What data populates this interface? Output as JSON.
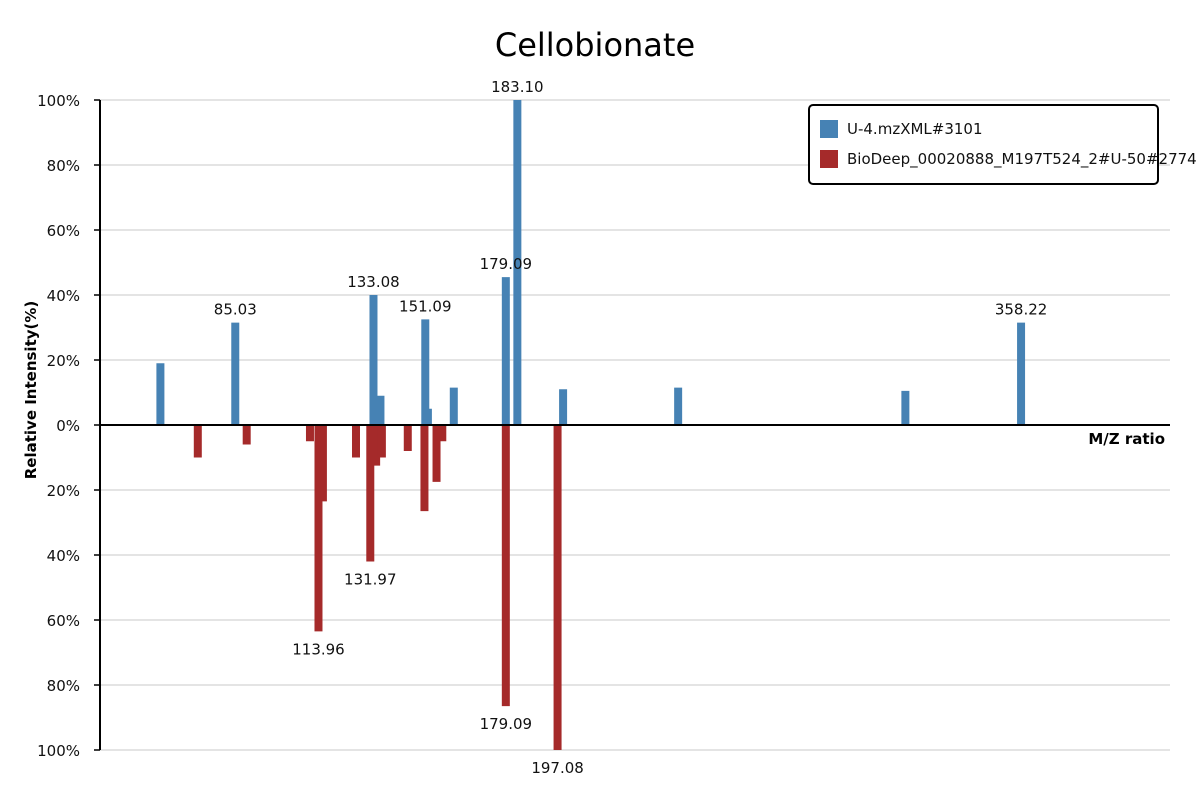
{
  "chart_data": {
    "type": "bar",
    "title": "Cellobionate",
    "ylabel": "Relative Intensity(%)",
    "xlabel": "M/Z ratio",
    "ylim": [
      -100,
      100
    ],
    "y_ticks": [
      "100%",
      "80%",
      "60%",
      "40%",
      "20%",
      "0%",
      "20%",
      "40%",
      "60%",
      "80%",
      "100%"
    ],
    "grid": true,
    "legend_position": "top-right",
    "colors": {
      "sample": "#4682b4",
      "reference": "#a52a2a"
    },
    "series": [
      {
        "name": "U-4.mzXML#3101",
        "direction": "up",
        "points": [
          {
            "mz": 59.0,
            "intensity": 19
          },
          {
            "mz": 85.03,
            "intensity": 31.5,
            "label": "85.03"
          },
          {
            "mz": 133.08,
            "intensity": 40,
            "label": "133.08"
          },
          {
            "mz": 134.0,
            "intensity": 7
          },
          {
            "mz": 135.5,
            "intensity": 9
          },
          {
            "mz": 151.09,
            "intensity": 32.5,
            "label": "151.09"
          },
          {
            "mz": 152.0,
            "intensity": 5
          },
          {
            "mz": 161.0,
            "intensity": 11.5
          },
          {
            "mz": 179.09,
            "intensity": 45.5,
            "label": "179.09"
          },
          {
            "mz": 183.1,
            "intensity": 100,
            "label": "183.10"
          },
          {
            "mz": 199.0,
            "intensity": 11
          },
          {
            "mz": 239.0,
            "intensity": 11.5
          },
          {
            "mz": 318.0,
            "intensity": 10.5
          },
          {
            "mz": 358.22,
            "intensity": 31.5,
            "label": "358.22"
          }
        ]
      },
      {
        "name": "BioDeep_00020888_M197T524_2#U-50#2774",
        "direction": "down",
        "points": [
          {
            "mz": 72.0,
            "intensity": 10
          },
          {
            "mz": 89.0,
            "intensity": 6
          },
          {
            "mz": 111.0,
            "intensity": 5
          },
          {
            "mz": 113.96,
            "intensity": 63.5,
            "label": "113.96"
          },
          {
            "mz": 115.5,
            "intensity": 23.5
          },
          {
            "mz": 127.0,
            "intensity": 10
          },
          {
            "mz": 131.97,
            "intensity": 42,
            "label": "131.97"
          },
          {
            "mz": 134.0,
            "intensity": 12.5
          },
          {
            "mz": 136.0,
            "intensity": 10
          },
          {
            "mz": 145.0,
            "intensity": 8
          },
          {
            "mz": 150.8,
            "intensity": 26.5
          },
          {
            "mz": 155.0,
            "intensity": 17.5
          },
          {
            "mz": 157.0,
            "intensity": 5
          },
          {
            "mz": 179.09,
            "intensity": 86.5,
            "label": "179.09"
          },
          {
            "mz": 197.08,
            "intensity": 100,
            "label": "197.08"
          }
        ]
      }
    ]
  }
}
